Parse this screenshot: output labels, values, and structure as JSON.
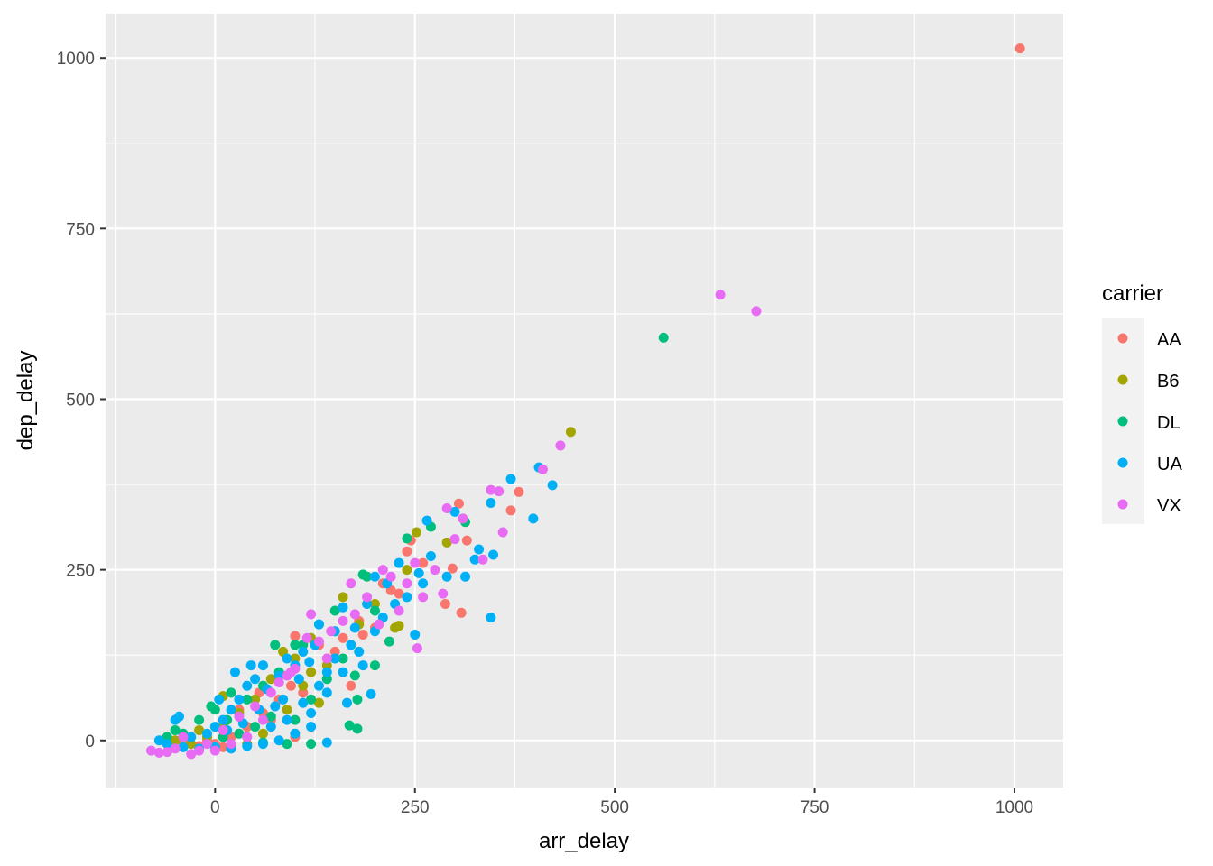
{
  "chart_data": {
    "type": "scatter",
    "xlabel": "arr_delay",
    "ylabel": "dep_delay",
    "xlim": [
      -137,
      1061
    ],
    "ylim": [
      -69,
      1065
    ],
    "xticks": [
      0,
      250,
      500,
      750,
      1000
    ],
    "yticks": [
      0,
      250,
      500,
      750,
      1000
    ],
    "xtick_labels": [
      "0",
      "250",
      "500",
      "750",
      "1000"
    ],
    "ytick_labels": [
      "0",
      "250",
      "500",
      "750",
      "1000"
    ],
    "grid": true,
    "legend": {
      "title": "carrier",
      "position": "right"
    },
    "series": [
      {
        "name": "AA",
        "color": "#F8766D",
        "points": [
          [
            1007,
            1014
          ],
          [
            305,
            347
          ],
          [
            380,
            364
          ],
          [
            370,
            337
          ],
          [
            315,
            293
          ],
          [
            297,
            252
          ],
          [
            288,
            200
          ],
          [
            308,
            187
          ],
          [
            245,
            293
          ],
          [
            240,
            277
          ],
          [
            260,
            260
          ],
          [
            230,
            215
          ],
          [
            200,
            165
          ],
          [
            185,
            155
          ],
          [
            100,
            153
          ],
          [
            170,
            80
          ],
          [
            100,
            5
          ],
          [
            220,
            220
          ],
          [
            210,
            230
          ],
          [
            160,
            150
          ],
          [
            140,
            120
          ],
          [
            120,
            100
          ],
          [
            95,
            80
          ],
          [
            80,
            60
          ],
          [
            60,
            40
          ],
          [
            40,
            20
          ],
          [
            20,
            5
          ],
          [
            0,
            -5
          ],
          [
            -20,
            -8
          ],
          [
            -10,
            0
          ],
          [
            70,
            30
          ],
          [
            110,
            70
          ],
          [
            150,
            130
          ],
          [
            180,
            175
          ],
          [
            30,
            45
          ],
          [
            55,
            70
          ],
          [
            90,
            95
          ],
          [
            130,
            140
          ],
          [
            -40,
            -3
          ],
          [
            10,
            -10
          ]
        ]
      },
      {
        "name": "B6",
        "color": "#A3A500",
        "points": [
          [
            445,
            452
          ],
          [
            252,
            305
          ],
          [
            290,
            290
          ],
          [
            230,
            168
          ],
          [
            225,
            165
          ],
          [
            160,
            210
          ],
          [
            120,
            100
          ],
          [
            10,
            65
          ],
          [
            130,
            55
          ],
          [
            180,
            170
          ],
          [
            150,
            160
          ],
          [
            100,
            120
          ],
          [
            85,
            130
          ],
          [
            70,
            90
          ],
          [
            50,
            60
          ],
          [
            30,
            40
          ],
          [
            10,
            20
          ],
          [
            -10,
            5
          ],
          [
            -30,
            -5
          ],
          [
            -50,
            0
          ],
          [
            40,
            -5
          ],
          [
            60,
            10
          ],
          [
            110,
            80
          ],
          [
            140,
            110
          ],
          [
            200,
            200
          ],
          [
            240,
            250
          ],
          [
            20,
            -8
          ],
          [
            90,
            45
          ],
          [
            -20,
            15
          ],
          [
            120,
            150
          ]
        ]
      },
      {
        "name": "DL",
        "color": "#00BF7D",
        "points": [
          [
            561,
            590
          ],
          [
            270,
            313
          ],
          [
            313,
            320
          ],
          [
            240,
            296
          ],
          [
            185,
            243
          ],
          [
            218,
            145
          ],
          [
            178,
            60
          ],
          [
            168,
            22
          ],
          [
            178,
            17
          ],
          [
            120,
            -5
          ],
          [
            -50,
            15
          ],
          [
            100,
            140
          ],
          [
            200,
            110
          ],
          [
            190,
            240
          ],
          [
            150,
            190
          ],
          [
            130,
            170
          ],
          [
            110,
            140
          ],
          [
            75,
            140
          ],
          [
            80,
            100
          ],
          [
            60,
            80
          ],
          [
            40,
            60
          ],
          [
            20,
            70
          ],
          [
            0,
            45
          ],
          [
            -20,
            30
          ],
          [
            -40,
            10
          ],
          [
            -60,
            5
          ],
          [
            10,
            5
          ],
          [
            30,
            10
          ],
          [
            50,
            20
          ],
          [
            70,
            35
          ],
          [
            90,
            -5
          ],
          [
            140,
            90
          ],
          [
            160,
            120
          ],
          [
            175,
            95
          ],
          [
            -5,
            50
          ],
          [
            15,
            30
          ],
          [
            120,
            60
          ],
          [
            100,
            30
          ],
          [
            60,
            -3
          ],
          [
            200,
            190
          ]
        ]
      },
      {
        "name": "UA",
        "color": "#00B0F6",
        "points": [
          [
            370,
            383
          ],
          [
            405,
            400
          ],
          [
            422,
            374
          ],
          [
            398,
            325
          ],
          [
            345,
            348
          ],
          [
            348,
            272
          ],
          [
            330,
            280
          ],
          [
            345,
            180
          ],
          [
            313,
            240
          ],
          [
            300,
            335
          ],
          [
            265,
            322
          ],
          [
            250,
            155
          ],
          [
            140,
            -3
          ],
          [
            195,
            68
          ],
          [
            165,
            55
          ],
          [
            140,
            70
          ],
          [
            120,
            20
          ],
          [
            260,
            230
          ],
          [
            240,
            210
          ],
          [
            255,
            245
          ],
          [
            230,
            260
          ],
          [
            200,
            240
          ],
          [
            190,
            200
          ],
          [
            210,
            180
          ],
          [
            175,
            165
          ],
          [
            160,
            195
          ],
          [
            150,
            160
          ],
          [
            130,
            170
          ],
          [
            125,
            140
          ],
          [
            110,
            130
          ],
          [
            100,
            110
          ],
          [
            90,
            120
          ],
          [
            80,
            95
          ],
          [
            60,
            110
          ],
          [
            50,
            90
          ],
          [
            40,
            80
          ],
          [
            30,
            60
          ],
          [
            20,
            45
          ],
          [
            10,
            30
          ],
          [
            0,
            20
          ],
          [
            -10,
            10
          ],
          [
            -30,
            5
          ],
          [
            -50,
            30
          ],
          [
            -70,
            0
          ],
          [
            -60,
            -5
          ],
          [
            -40,
            -10
          ],
          [
            -20,
            -12
          ],
          [
            0,
            -10
          ],
          [
            20,
            -12
          ],
          [
            40,
            -8
          ],
          [
            60,
            -5
          ],
          [
            80,
            0
          ],
          [
            100,
            10
          ],
          [
            120,
            40
          ],
          [
            140,
            100
          ],
          [
            160,
            100
          ],
          [
            180,
            130
          ],
          [
            130,
            80
          ],
          [
            110,
            55
          ],
          [
            90,
            30
          ],
          [
            70,
            20
          ],
          [
            55,
            45
          ],
          [
            35,
            25
          ],
          [
            15,
            15
          ],
          [
            25,
            100
          ],
          [
            45,
            110
          ],
          [
            65,
            75
          ],
          [
            85,
            60
          ],
          [
            105,
            90
          ],
          [
            118,
            115
          ],
          [
            170,
            140
          ],
          [
            185,
            110
          ],
          [
            200,
            160
          ],
          [
            270,
            270
          ],
          [
            290,
            240
          ],
          [
            325,
            265
          ],
          [
            215,
            230
          ],
          [
            225,
            200
          ],
          [
            150,
            120
          ],
          [
            -45,
            35
          ],
          [
            5,
            60
          ],
          [
            75,
            50
          ]
        ]
      },
      {
        "name": "VX",
        "color": "#E76BF3",
        "points": [
          [
            632,
            653
          ],
          [
            677,
            629
          ],
          [
            410,
            397
          ],
          [
            432,
            432
          ],
          [
            345,
            367
          ],
          [
            355,
            365
          ],
          [
            360,
            305
          ],
          [
            335,
            265
          ],
          [
            290,
            340
          ],
          [
            310,
            325
          ],
          [
            285,
            215
          ],
          [
            253,
            135
          ],
          [
            120,
            185
          ],
          [
            -80,
            -15
          ],
          [
            -70,
            -18
          ],
          [
            -60,
            -17
          ],
          [
            -30,
            -20
          ],
          [
            300,
            295
          ],
          [
            275,
            250
          ],
          [
            260,
            210
          ],
          [
            250,
            260
          ],
          [
            230,
            190
          ],
          [
            210,
            250
          ],
          [
            205,
            170
          ],
          [
            190,
            210
          ],
          [
            175,
            185
          ],
          [
            160,
            175
          ],
          [
            145,
            160
          ],
          [
            130,
            145
          ],
          [
            115,
            150
          ],
          [
            100,
            105
          ],
          [
            90,
            95
          ],
          [
            70,
            70
          ],
          [
            50,
            50
          ],
          [
            30,
            35
          ],
          [
            10,
            15
          ],
          [
            -10,
            -5
          ],
          [
            -20,
            -15
          ],
          [
            -50,
            -12
          ],
          [
            0,
            -15
          ],
          [
            20,
            -5
          ],
          [
            40,
            5
          ],
          [
            80,
            85
          ],
          [
            140,
            120
          ],
          [
            170,
            230
          ],
          [
            220,
            240
          ],
          [
            240,
            230
          ],
          [
            -40,
            5
          ],
          [
            95,
            100
          ],
          [
            60,
            30
          ]
        ]
      }
    ]
  }
}
